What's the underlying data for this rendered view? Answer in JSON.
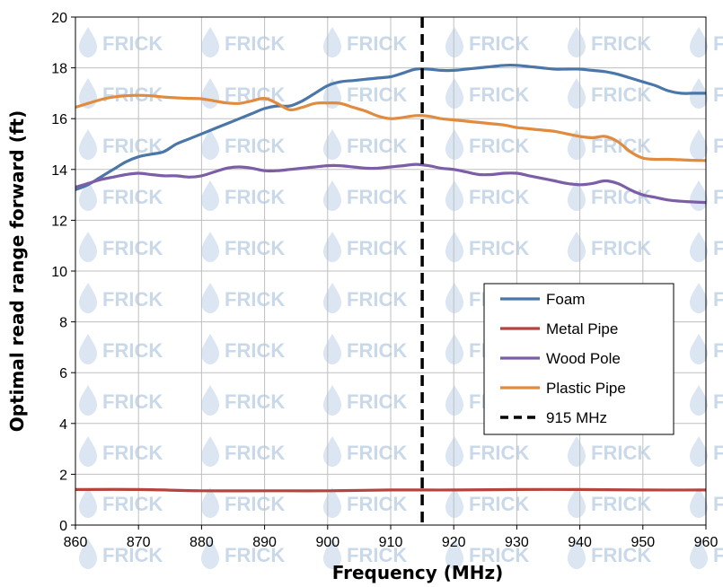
{
  "chart_data": {
    "type": "line",
    "title": "",
    "xlabel": "Frequency (MHz)",
    "ylabel": "Optimal read range forward (ft)",
    "xlim": [
      860,
      960
    ],
    "ylim": [
      0,
      20
    ],
    "xticks": [
      "860",
      "870",
      "880",
      "890",
      "900",
      "910",
      "920",
      "930",
      "940",
      "950",
      "960"
    ],
    "yticks": [
      "0",
      "2",
      "4",
      "6",
      "8",
      "10",
      "12",
      "14",
      "16",
      "18",
      "20"
    ],
    "grid": true,
    "legend_position": "right",
    "watermark": "FRICK",
    "series": [
      {
        "name": "Foam",
        "color": "#4a76a8",
        "x": [
          860,
          862,
          864,
          866,
          868,
          870,
          872,
          874,
          876,
          878,
          880,
          882,
          884,
          886,
          888,
          890,
          892,
          894,
          896,
          898,
          900,
          902,
          904,
          906,
          908,
          910,
          912,
          914,
          916,
          918,
          920,
          922,
          924,
          926,
          928,
          930,
          932,
          934,
          936,
          938,
          940,
          942,
          944,
          946,
          948,
          950,
          952,
          954,
          956,
          958,
          960
        ],
        "values": [
          13.2,
          13.4,
          13.7,
          14.0,
          14.3,
          14.5,
          14.6,
          14.7,
          15.0,
          15.2,
          15.4,
          15.6,
          15.8,
          16.0,
          16.2,
          16.4,
          16.5,
          16.5,
          16.7,
          17.0,
          17.3,
          17.45,
          17.5,
          17.55,
          17.6,
          17.65,
          17.8,
          17.95,
          17.95,
          17.9,
          17.9,
          17.95,
          18.0,
          18.05,
          18.1,
          18.1,
          18.05,
          18.0,
          17.95,
          17.95,
          17.95,
          17.9,
          17.85,
          17.75,
          17.6,
          17.45,
          17.3,
          17.1,
          17.0,
          17.0,
          17.0
        ]
      },
      {
        "name": "Metal Pipe",
        "color": "#b5443f",
        "x": [
          860,
          870,
          880,
          890,
          900,
          910,
          920,
          930,
          940,
          950,
          960
        ],
        "values": [
          1.4,
          1.4,
          1.35,
          1.35,
          1.35,
          1.38,
          1.38,
          1.4,
          1.4,
          1.38,
          1.38
        ]
      },
      {
        "name": "Wood Pole",
        "color": "#7c5ea6",
        "x": [
          860,
          862,
          864,
          866,
          868,
          870,
          872,
          874,
          876,
          878,
          880,
          882,
          884,
          886,
          888,
          890,
          892,
          894,
          896,
          898,
          900,
          902,
          904,
          906,
          908,
          910,
          912,
          914,
          916,
          918,
          920,
          922,
          924,
          926,
          928,
          930,
          932,
          934,
          936,
          938,
          940,
          942,
          944,
          946,
          948,
          950,
          952,
          954,
          956,
          958,
          960
        ],
        "values": [
          13.3,
          13.45,
          13.6,
          13.7,
          13.8,
          13.85,
          13.8,
          13.75,
          13.75,
          13.7,
          13.75,
          13.9,
          14.05,
          14.1,
          14.05,
          13.95,
          13.95,
          14.0,
          14.05,
          14.1,
          14.15,
          14.15,
          14.1,
          14.05,
          14.05,
          14.1,
          14.15,
          14.2,
          14.15,
          14.05,
          14.0,
          13.9,
          13.8,
          13.8,
          13.85,
          13.85,
          13.75,
          13.65,
          13.55,
          13.45,
          13.4,
          13.45,
          13.55,
          13.45,
          13.2,
          13.0,
          12.9,
          12.8,
          12.75,
          12.72,
          12.7
        ]
      },
      {
        "name": "Plastic Pipe",
        "color": "#e08b3e",
        "x": [
          860,
          862,
          864,
          866,
          868,
          870,
          872,
          874,
          876,
          878,
          880,
          882,
          884,
          886,
          888,
          890,
          892,
          894,
          896,
          898,
          900,
          902,
          904,
          906,
          908,
          910,
          912,
          914,
          916,
          918,
          920,
          922,
          924,
          926,
          928,
          930,
          932,
          934,
          936,
          938,
          940,
          942,
          944,
          946,
          948,
          950,
          952,
          954,
          956,
          958,
          960
        ],
        "values": [
          16.45,
          16.6,
          16.75,
          16.85,
          16.9,
          16.92,
          16.9,
          16.85,
          16.82,
          16.8,
          16.78,
          16.7,
          16.62,
          16.6,
          16.7,
          16.8,
          16.6,
          16.35,
          16.45,
          16.6,
          16.62,
          16.6,
          16.45,
          16.3,
          16.1,
          16.0,
          16.05,
          16.12,
          16.1,
          16.0,
          15.95,
          15.9,
          15.85,
          15.8,
          15.75,
          15.65,
          15.6,
          15.55,
          15.5,
          15.4,
          15.3,
          15.25,
          15.3,
          15.1,
          14.7,
          14.45,
          14.4,
          14.4,
          14.38,
          14.36,
          14.35
        ]
      }
    ],
    "marker_line": {
      "name": "915 MHz",
      "x": 915,
      "color": "#000000",
      "style": "dashed"
    }
  }
}
